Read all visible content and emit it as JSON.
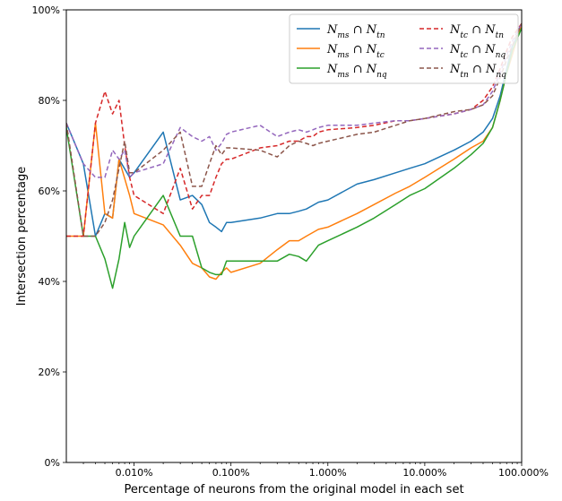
{
  "chart_data": {
    "type": "line",
    "title": "",
    "xlabel": "Percentage of neurons from the original model in each set",
    "ylabel": "Intersection percentage",
    "xscale": "log",
    "xlim": [
      0.002,
      100
    ],
    "ylim": [
      0,
      100
    ],
    "x_ticks": [
      {
        "value": 0.01,
        "label": "0.010%"
      },
      {
        "value": 0.1,
        "label": "0.100%"
      },
      {
        "value": 1,
        "label": "1.000%"
      },
      {
        "value": 10,
        "label": "10.000%"
      },
      {
        "value": 100,
        "label": "100.000%"
      }
    ],
    "y_ticks": [
      {
        "value": 0,
        "label": "0%"
      },
      {
        "value": 20,
        "label": "20%"
      },
      {
        "value": 40,
        "label": "40%"
      },
      {
        "value": 60,
        "label": "60%"
      },
      {
        "value": 80,
        "label": "80%"
      },
      {
        "value": 100,
        "label": "100%"
      }
    ],
    "grid": false,
    "legend_position": "top-right",
    "series": [
      {
        "name": "N_ms ∩ N_tn",
        "legend": {
          "a": "N",
          "a_sub": "ms",
          "op": "∩",
          "b": "N",
          "b_sub": "tn"
        },
        "color": "#1f77b4",
        "dash": "solid",
        "points": [
          [
            0.002,
            75
          ],
          [
            0.003,
            66
          ],
          [
            0.004,
            50
          ],
          [
            0.005,
            55
          ],
          [
            0.006,
            54
          ],
          [
            0.007,
            67
          ],
          [
            0.009,
            63
          ],
          [
            0.01,
            64
          ],
          [
            0.02,
            73
          ],
          [
            0.03,
            58
          ],
          [
            0.04,
            59
          ],
          [
            0.05,
            57
          ],
          [
            0.06,
            53
          ],
          [
            0.07,
            52
          ],
          [
            0.08,
            51
          ],
          [
            0.09,
            53
          ],
          [
            0.1,
            53
          ],
          [
            0.2,
            54
          ],
          [
            0.3,
            55
          ],
          [
            0.4,
            55
          ],
          [
            0.5,
            55.5
          ],
          [
            0.6,
            56
          ],
          [
            0.8,
            57.5
          ],
          [
            1,
            58
          ],
          [
            2,
            61.5
          ],
          [
            3,
            62.5
          ],
          [
            5,
            64
          ],
          [
            7,
            65
          ],
          [
            10,
            66
          ],
          [
            20,
            69
          ],
          [
            30,
            71
          ],
          [
            40,
            73
          ],
          [
            50,
            76
          ],
          [
            60,
            81
          ],
          [
            70,
            87
          ],
          [
            80,
            92
          ],
          [
            100,
            96
          ]
        ]
      },
      {
        "name": "N_ms ∩ N_tc",
        "legend": {
          "a": "N",
          "a_sub": "ms",
          "op": "∩",
          "b": "N",
          "b_sub": "tc"
        },
        "color": "#ff7f0e",
        "dash": "solid",
        "points": [
          [
            0.002,
            50
          ],
          [
            0.003,
            50
          ],
          [
            0.004,
            75
          ],
          [
            0.005,
            55
          ],
          [
            0.006,
            54
          ],
          [
            0.007,
            67
          ],
          [
            0.009,
            59
          ],
          [
            0.01,
            55
          ],
          [
            0.02,
            52.5
          ],
          [
            0.03,
            48
          ],
          [
            0.04,
            44
          ],
          [
            0.05,
            43
          ],
          [
            0.06,
            41
          ],
          [
            0.07,
            40.5
          ],
          [
            0.08,
            42
          ],
          [
            0.09,
            43
          ],
          [
            0.1,
            42
          ],
          [
            0.2,
            44
          ],
          [
            0.3,
            47
          ],
          [
            0.4,
            49
          ],
          [
            0.5,
            49
          ],
          [
            0.6,
            50
          ],
          [
            0.8,
            51.5
          ],
          [
            1,
            52
          ],
          [
            2,
            55
          ],
          [
            3,
            57
          ],
          [
            5,
            59.5
          ],
          [
            7,
            61
          ],
          [
            10,
            63
          ],
          [
            20,
            67
          ],
          [
            30,
            69.5
          ],
          [
            40,
            71
          ],
          [
            50,
            74
          ],
          [
            60,
            80
          ],
          [
            70,
            86
          ],
          [
            80,
            90
          ],
          [
            100,
            97
          ]
        ]
      },
      {
        "name": "N_ms ∩ N_nq",
        "legend": {
          "a": "N",
          "a_sub": "ms",
          "op": "∩",
          "b": "N",
          "b_sub": "nq"
        },
        "color": "#2ca02c",
        "dash": "solid",
        "points": [
          [
            0.002,
            74
          ],
          [
            0.003,
            50
          ],
          [
            0.004,
            50
          ],
          [
            0.005,
            45
          ],
          [
            0.006,
            38.5
          ],
          [
            0.007,
            45
          ],
          [
            0.008,
            53
          ],
          [
            0.009,
            47.5
          ],
          [
            0.01,
            50
          ],
          [
            0.02,
            59
          ],
          [
            0.03,
            50
          ],
          [
            0.04,
            50
          ],
          [
            0.05,
            43
          ],
          [
            0.06,
            42
          ],
          [
            0.07,
            41.5
          ],
          [
            0.08,
            41.5
          ],
          [
            0.09,
            44.5
          ],
          [
            0.1,
            44.5
          ],
          [
            0.2,
            44.5
          ],
          [
            0.3,
            44.5
          ],
          [
            0.4,
            46
          ],
          [
            0.5,
            45.5
          ],
          [
            0.6,
            44.5
          ],
          [
            0.8,
            48
          ],
          [
            1,
            49
          ],
          [
            2,
            52
          ],
          [
            3,
            54
          ],
          [
            5,
            57
          ],
          [
            7,
            59
          ],
          [
            10,
            60.5
          ],
          [
            20,
            65
          ],
          [
            30,
            68
          ],
          [
            40,
            70.5
          ],
          [
            50,
            74
          ],
          [
            60,
            80
          ],
          [
            70,
            86
          ],
          [
            80,
            91
          ],
          [
            100,
            96
          ]
        ]
      },
      {
        "name": "N_tc ∩ N_tn",
        "legend": {
          "a": "N",
          "a_sub": "tc",
          "op": "∩",
          "b": "N",
          "b_sub": "tn"
        },
        "color": "#d62728",
        "dash": "dashed",
        "points": [
          [
            0.002,
            50
          ],
          [
            0.003,
            50
          ],
          [
            0.004,
            75
          ],
          [
            0.005,
            82
          ],
          [
            0.006,
            77
          ],
          [
            0.007,
            80
          ],
          [
            0.008,
            70
          ],
          [
            0.009,
            63
          ],
          [
            0.01,
            59
          ],
          [
            0.02,
            55
          ],
          [
            0.03,
            65
          ],
          [
            0.04,
            56
          ],
          [
            0.05,
            59
          ],
          [
            0.06,
            59
          ],
          [
            0.07,
            63
          ],
          [
            0.08,
            66
          ],
          [
            0.09,
            67
          ],
          [
            0.1,
            67
          ],
          [
            0.2,
            69.5
          ],
          [
            0.3,
            70
          ],
          [
            0.4,
            71
          ],
          [
            0.5,
            71
          ],
          [
            0.6,
            72
          ],
          [
            0.7,
            72
          ],
          [
            0.8,
            73
          ],
          [
            1,
            73.5
          ],
          [
            2,
            74
          ],
          [
            3,
            74.5
          ],
          [
            5,
            75.5
          ],
          [
            7,
            75.5
          ],
          [
            10,
            76
          ],
          [
            20,
            77
          ],
          [
            30,
            78
          ],
          [
            40,
            80
          ],
          [
            50,
            83
          ],
          [
            60,
            87
          ],
          [
            70,
            91
          ],
          [
            80,
            94
          ],
          [
            100,
            97
          ]
        ]
      },
      {
        "name": "N_tc ∩ N_nq",
        "legend": {
          "a": "N",
          "a_sub": "tc",
          "op": "∩",
          "b": "N",
          "b_sub": "nq"
        },
        "color": "#9467bd",
        "dash": "dashed",
        "points": [
          [
            0.002,
            75
          ],
          [
            0.003,
            66
          ],
          [
            0.004,
            63
          ],
          [
            0.005,
            63
          ],
          [
            0.006,
            69
          ],
          [
            0.007,
            67
          ],
          [
            0.008,
            69
          ],
          [
            0.009,
            63
          ],
          [
            0.01,
            64
          ],
          [
            0.02,
            66
          ],
          [
            0.03,
            74
          ],
          [
            0.04,
            72
          ],
          [
            0.05,
            71
          ],
          [
            0.06,
            72
          ],
          [
            0.07,
            69
          ],
          [
            0.08,
            70.5
          ],
          [
            0.09,
            72.5
          ],
          [
            0.1,
            73
          ],
          [
            0.2,
            74.5
          ],
          [
            0.3,
            72
          ],
          [
            0.4,
            73
          ],
          [
            0.5,
            73.5
          ],
          [
            0.6,
            73
          ],
          [
            0.7,
            73.5
          ],
          [
            0.8,
            74
          ],
          [
            1,
            74.5
          ],
          [
            2,
            74.5
          ],
          [
            3,
            75
          ],
          [
            5,
            75.5
          ],
          [
            7,
            75.5
          ],
          [
            10,
            76
          ],
          [
            20,
            77
          ],
          [
            30,
            78
          ],
          [
            40,
            79
          ],
          [
            50,
            82
          ],
          [
            60,
            86
          ],
          [
            70,
            90
          ],
          [
            80,
            93
          ],
          [
            100,
            97
          ]
        ]
      },
      {
        "name": "N_tn ∩ N_nq",
        "legend": {
          "a": "N",
          "a_sub": "tn",
          "op": "∩",
          "b": "N",
          "b_sub": "nq"
        },
        "color": "#8c564b",
        "dash": "dashed",
        "points": [
          [
            0.002,
            75
          ],
          [
            0.003,
            50
          ],
          [
            0.004,
            50
          ],
          [
            0.005,
            53
          ],
          [
            0.006,
            58
          ],
          [
            0.007,
            65
          ],
          [
            0.008,
            71
          ],
          [
            0.009,
            64
          ],
          [
            0.01,
            64
          ],
          [
            0.02,
            69
          ],
          [
            0.03,
            73
          ],
          [
            0.04,
            61
          ],
          [
            0.05,
            61
          ],
          [
            0.06,
            66
          ],
          [
            0.07,
            70
          ],
          [
            0.08,
            68
          ],
          [
            0.09,
            69.5
          ],
          [
            0.1,
            69.5
          ],
          [
            0.2,
            69
          ],
          [
            0.3,
            67.5
          ],
          [
            0.4,
            70
          ],
          [
            0.5,
            71
          ],
          [
            0.6,
            70.5
          ],
          [
            0.7,
            70
          ],
          [
            0.8,
            70.5
          ],
          [
            1,
            71
          ],
          [
            2,
            72.5
          ],
          [
            3,
            73
          ],
          [
            5,
            74.5
          ],
          [
            7,
            75.5
          ],
          [
            10,
            76
          ],
          [
            20,
            77.5
          ],
          [
            30,
            78
          ],
          [
            40,
            79
          ],
          [
            50,
            81
          ],
          [
            60,
            85
          ],
          [
            70,
            89
          ],
          [
            80,
            92
          ],
          [
            100,
            97
          ]
        ]
      }
    ]
  }
}
